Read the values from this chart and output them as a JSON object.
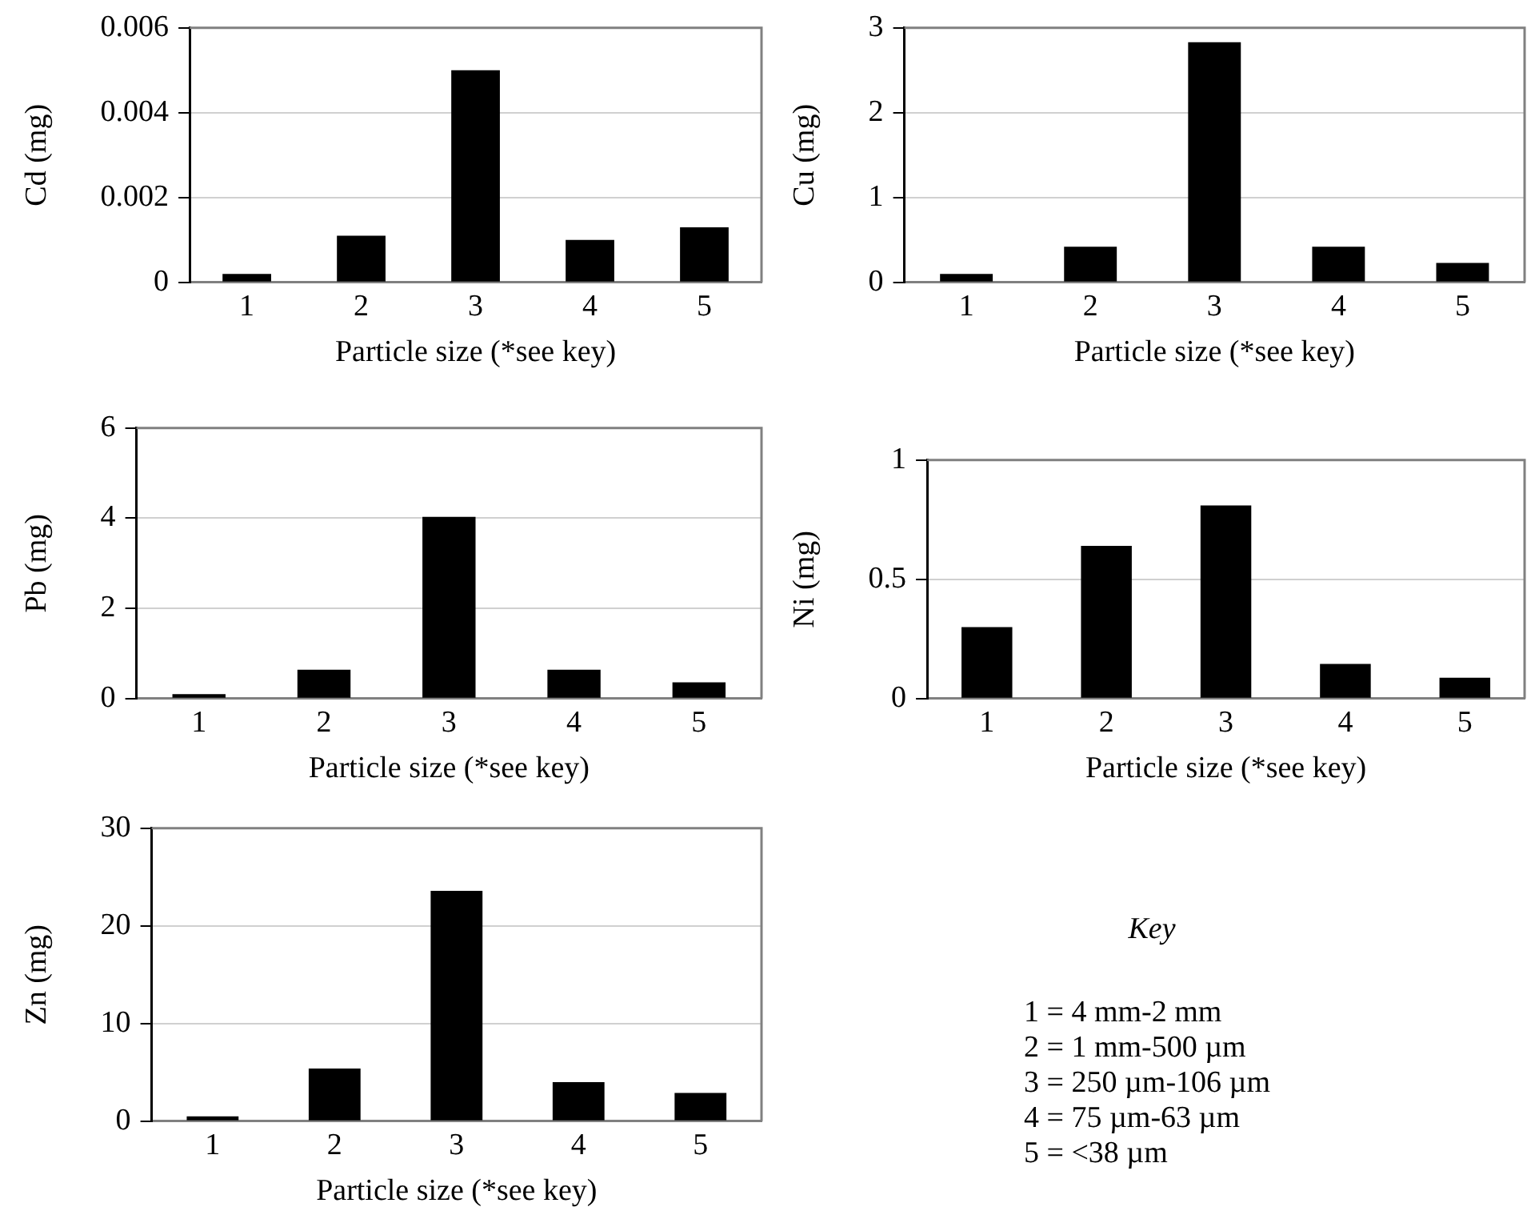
{
  "chart_data": [
    {
      "type": "bar",
      "categories": [
        "1",
        "2",
        "3",
        "4",
        "5"
      ],
      "values": [
        0.0002,
        0.0011,
        0.005,
        0.001,
        0.0013
      ],
      "color": "#000000",
      "ylabel": "Cd (mg)",
      "xlabel": "Particle size (*see key)",
      "ylim": [
        0,
        0.006
      ],
      "yticks": [
        0,
        0.002,
        0.004,
        0.006
      ],
      "grid": "y"
    },
    {
      "type": "bar",
      "categories": [
        "1",
        "2",
        "3",
        "4",
        "5"
      ],
      "values": [
        0.1,
        0.42,
        2.83,
        0.42,
        0.23
      ],
      "color": "#000000",
      "ylabel": "Cu (mg)",
      "xlabel": "Particle size (*see key)",
      "ylim": [
        0,
        3
      ],
      "yticks": [
        0,
        1,
        2,
        3
      ],
      "grid": "y"
    },
    {
      "type": "bar",
      "categories": [
        "1",
        "2",
        "3",
        "4",
        "5"
      ],
      "values": [
        0.1,
        0.64,
        4.03,
        0.64,
        0.36
      ],
      "color": "#000000",
      "ylabel": "Pb (mg)",
      "xlabel": "Particle size (*see key)",
      "ylim": [
        0,
        6
      ],
      "yticks": [
        0,
        2,
        4,
        6
      ],
      "grid": "y"
    },
    {
      "type": "bar",
      "categories": [
        "1",
        "2",
        "3",
        "4",
        "5"
      ],
      "values": [
        0.3,
        0.64,
        0.81,
        0.145,
        0.087
      ],
      "color": "#000000",
      "ylabel": "Ni (mg)",
      "xlabel": "Particle size (*see key)",
      "ylim": [
        0,
        1
      ],
      "yticks": [
        0,
        0.5,
        1
      ],
      "grid": "y"
    },
    {
      "type": "bar",
      "categories": [
        "1",
        "2",
        "3",
        "4",
        "5"
      ],
      "values": [
        0.5,
        5.4,
        23.6,
        4.0,
        2.9
      ],
      "color": "#000000",
      "ylabel": "Zn (mg)",
      "xlabel": "Particle size (*see key)",
      "ylim": [
        0,
        30
      ],
      "yticks": [
        0,
        10,
        20,
        30
      ],
      "grid": "y"
    },
    {
      "type": "other",
      "title": "Key",
      "annotations": [
        "1 = 4 mm-2 mm",
        "2 = 1 mm-500 µm",
        "3 = 250 µm-106 µm",
        "4 = 75 µm-63 µm",
        "5 = <38 µm"
      ]
    }
  ]
}
